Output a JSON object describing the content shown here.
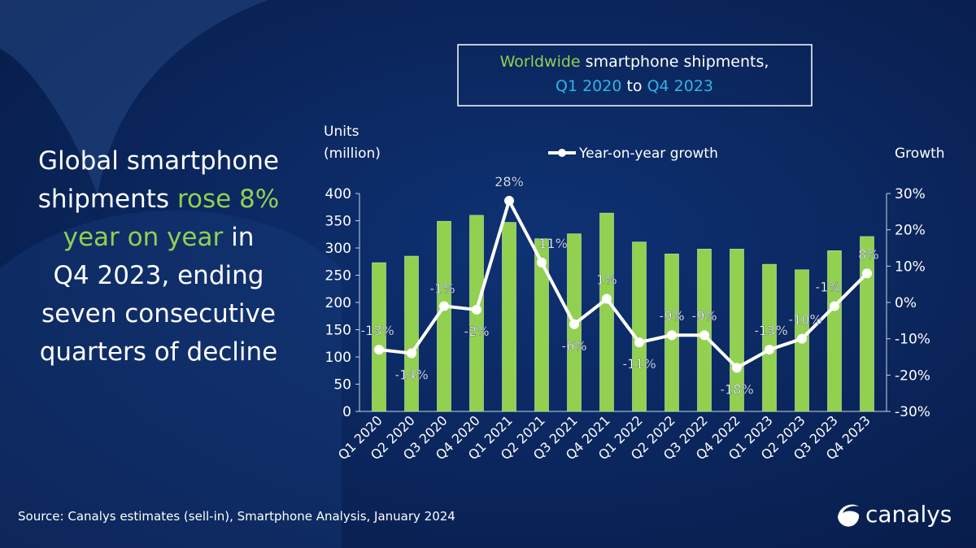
{
  "headline": {
    "lines": [
      [
        {
          "t": "Global smartphone",
          "hl": false
        }
      ],
      [
        {
          "t": "shipments ",
          "hl": false
        },
        {
          "t": "rose 8%",
          "hl": true
        }
      ],
      [
        {
          "t": "year on year",
          "hl": true
        },
        {
          "t": " in",
          "hl": false
        }
      ],
      [
        {
          "t": "Q4 2023, ending",
          "hl": false
        }
      ],
      [
        {
          "t": "seven consecutive",
          "hl": false
        }
      ],
      [
        {
          "t": "quarters of decline",
          "hl": false
        }
      ]
    ]
  },
  "title_box": {
    "line1_highlight": "Worldwide",
    "line1_rest": " smartphone shipments,",
    "line2_from": "Q1 2020",
    "line2_mid": " to ",
    "line2_to": "Q4 2023"
  },
  "source": "Source: Canalys estimates (sell-in), Smartphone Analysis, January 2024",
  "logo": "canalys",
  "colors": {
    "bar": "#92d050",
    "line": "#ffffff",
    "highlight_green": "#92d050",
    "highlight_blue": "#2fb5e8",
    "background": "#0b2257"
  },
  "chart_data": {
    "type": "bar+line",
    "categories": [
      "Q1 2020",
      "Q2 2020",
      "Q3 2020",
      "Q4 2020",
      "Q1 2021",
      "Q2 2021",
      "Q3 2021",
      "Q4 2021",
      "Q1 2022",
      "Q2 2022",
      "Q3 2022",
      "Q4 2022",
      "Q1 2023",
      "Q2 2023",
      "Q3 2023",
      "Q4 2023"
    ],
    "ylabel_left": [
      "Units",
      "(million)"
    ],
    "ylabel_right": "Growth",
    "ylim_left": [
      0,
      400
    ],
    "yticks_left": [
      "0",
      "50",
      "100",
      "150",
      "200",
      "250",
      "300",
      "350",
      "400"
    ],
    "ylim_right": [
      -30,
      30
    ],
    "yticks_right": [
      "-30%",
      "-20%",
      "-10%",
      "0%",
      "10%",
      "20%",
      "30%"
    ],
    "legend": "Year-on-year growth",
    "legend_position": "top",
    "grid": false,
    "series": [
      {
        "type": "bar",
        "values": [
          273,
          285,
          349,
          360,
          347,
          317,
          326,
          364,
          311,
          289,
          298,
          298,
          270,
          260,
          295,
          321
        ]
      },
      {
        "type": "line",
        "name": "Year-on-year growth",
        "values": [
          -13,
          -14,
          -1,
          -2,
          28,
          11,
          -6,
          1,
          -11,
          -9,
          -9,
          -18,
          -13,
          -10,
          -1,
          8
        ],
        "labels": [
          "-13%",
          "-14%",
          "-1%",
          "-2%",
          "28%",
          "11%",
          "-6%",
          "1%",
          "-11%",
          "-9%",
          "-9%",
          "-18%",
          "-13%",
          "-10%",
          "-1%",
          "8%"
        ]
      }
    ]
  }
}
